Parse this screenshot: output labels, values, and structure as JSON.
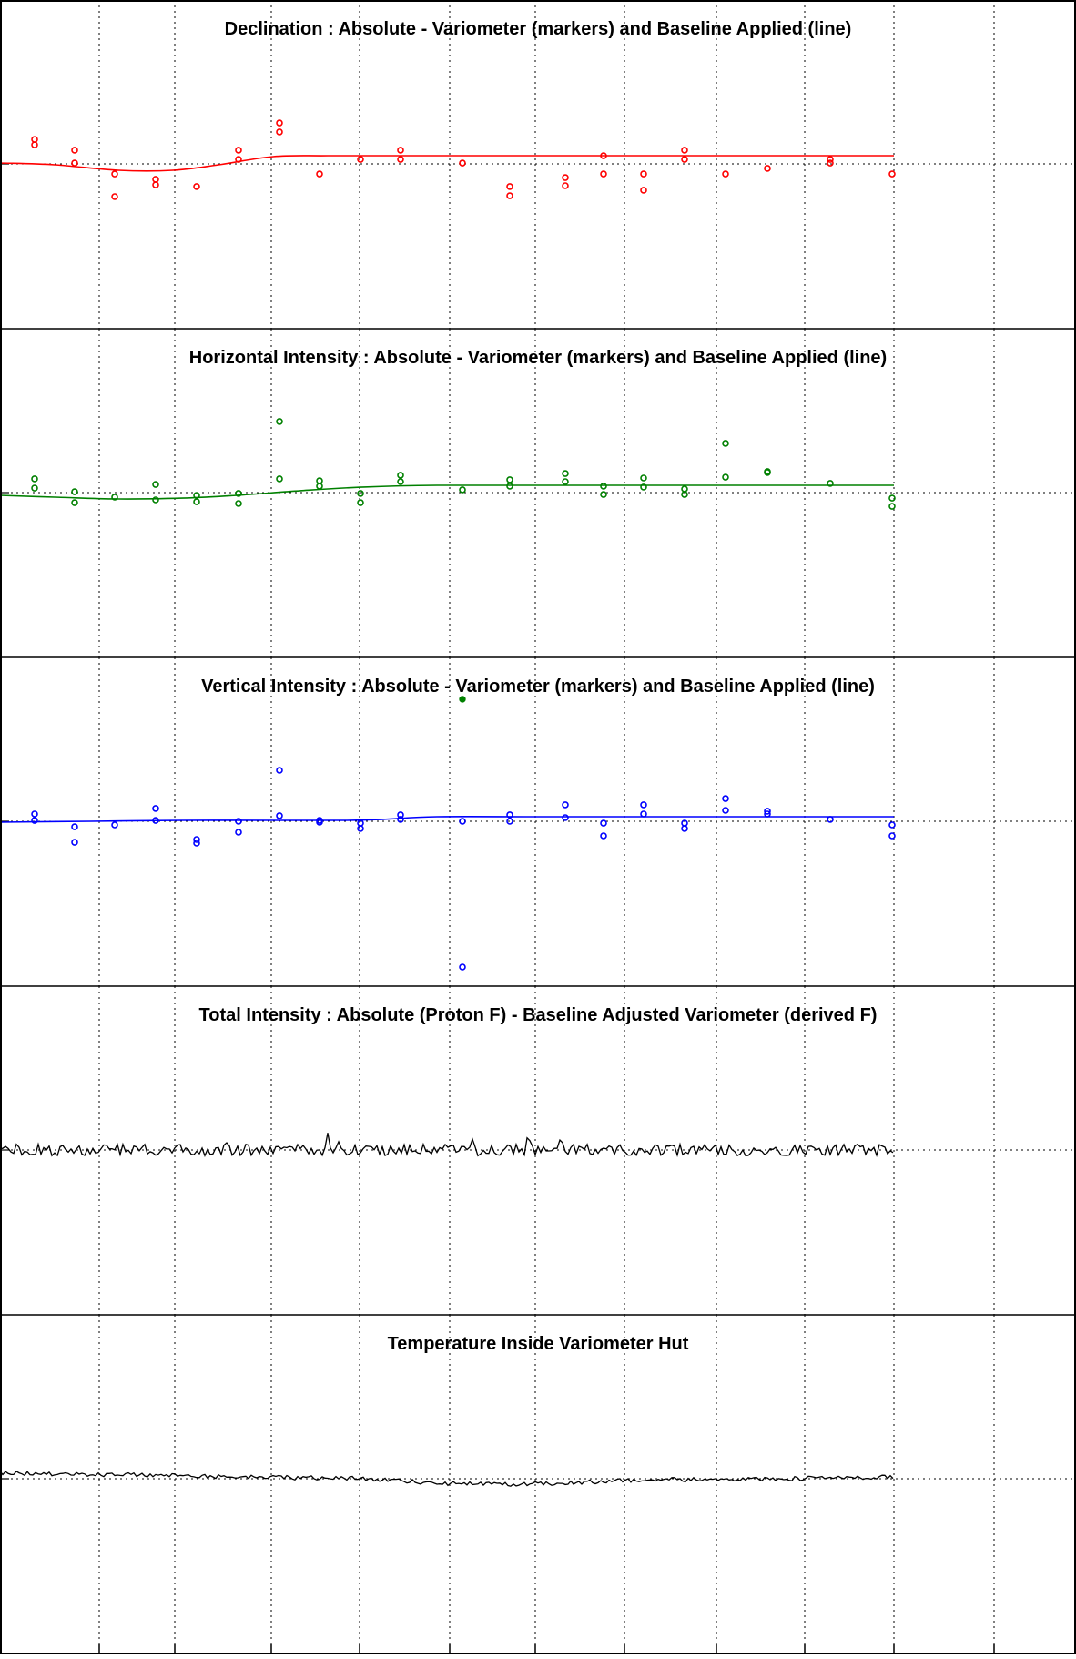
{
  "chart_data": [
    {
      "type": "scatter",
      "title": "Declination : Absolute - Variometer (markers) and Baseline Applied (line)",
      "color": "#ff0000",
      "marker": "open-circle",
      "x_range": [
        0,
        1182
      ],
      "ylim": [
        -1,
        1
      ],
      "reference_level": 0,
      "grid": true,
      "markers": [
        [
          38,
          0.168
        ],
        [
          38,
          0.131
        ],
        [
          82,
          0.094
        ],
        [
          82,
          0.006
        ],
        [
          126,
          -0.069
        ],
        [
          126,
          -0.225
        ],
        [
          171,
          -0.106
        ],
        [
          171,
          -0.144
        ],
        [
          216,
          -0.156
        ],
        [
          262,
          0.094
        ],
        [
          262,
          0.031
        ],
        [
          307,
          0.281
        ],
        [
          307,
          0.219
        ],
        [
          351,
          -0.069
        ],
        [
          396,
          0.031
        ],
        [
          440,
          0.094
        ],
        [
          440,
          0.031
        ],
        [
          508,
          0.006
        ],
        [
          560,
          -0.156
        ],
        [
          560,
          -0.219
        ],
        [
          621,
          -0.094
        ],
        [
          621,
          -0.15
        ],
        [
          663,
          0.056
        ],
        [
          663,
          -0.069
        ],
        [
          707,
          -0.069
        ],
        [
          707,
          -0.181
        ],
        [
          752,
          0.094
        ],
        [
          752,
          0.031
        ],
        [
          797,
          -0.069
        ],
        [
          843,
          -0.031
        ],
        [
          912,
          0.031
        ],
        [
          912,
          0.006
        ],
        [
          980,
          -0.069
        ]
      ],
      "baseline": [
        [
          0,
          0.006
        ],
        [
          60,
          -0.006
        ],
        [
          130,
          -0.044
        ],
        [
          190,
          -0.044
        ],
        [
          240,
          -0.006
        ],
        [
          300,
          0.05
        ],
        [
          360,
          0.056
        ],
        [
          450,
          0.056
        ],
        [
          600,
          0.056
        ],
        [
          800,
          0.056
        ],
        [
          982,
          0.056
        ]
      ]
    },
    {
      "type": "scatter",
      "title": "Horizontal Intensity : Absolute - Variometer (markers) and Baseline Applied (line)",
      "color": "#008000",
      "marker": "open-circle",
      "x_range": [
        0,
        1182
      ],
      "ylim": [
        -1,
        1
      ],
      "reference_level": 0,
      "grid": true,
      "markers": [
        [
          38,
          0.094
        ],
        [
          38,
          0.031
        ],
        [
          82,
          0.006
        ],
        [
          82,
          -0.069
        ],
        [
          126,
          -0.031
        ],
        [
          171,
          0.056
        ],
        [
          171,
          -0.05
        ],
        [
          216,
          -0.019
        ],
        [
          216,
          -0.063
        ],
        [
          262,
          -0.006
        ],
        [
          262,
          -0.075
        ],
        [
          307,
          0.488
        ],
        [
          307,
          0.094
        ],
        [
          351,
          0.081
        ],
        [
          351,
          0.044
        ],
        [
          396,
          -0.006
        ],
        [
          396,
          -0.069
        ],
        [
          440,
          0.119
        ],
        [
          440,
          0.075
        ],
        [
          508,
          0.019
        ],
        [
          560,
          0.088
        ],
        [
          560,
          0.044
        ],
        [
          621,
          0.131
        ],
        [
          621,
          0.075
        ],
        [
          663,
          0.044
        ],
        [
          663,
          -0.013
        ],
        [
          707,
          0.1
        ],
        [
          707,
          0.038
        ],
        [
          752,
          0.025
        ],
        [
          752,
          -0.013
        ],
        [
          797,
          0.338
        ],
        [
          797,
          0.106
        ],
        [
          843,
          0.144
        ],
        [
          843,
          0.138
        ],
        [
          912,
          0.063
        ],
        [
          980,
          -0.038
        ],
        [
          980,
          -0.094
        ]
      ],
      "baseline": [
        [
          0,
          -0.019
        ],
        [
          60,
          -0.031
        ],
        [
          130,
          -0.044
        ],
        [
          200,
          -0.038
        ],
        [
          260,
          -0.019
        ],
        [
          330,
          0.013
        ],
        [
          400,
          0.038
        ],
        [
          480,
          0.05
        ],
        [
          600,
          0.05
        ],
        [
          800,
          0.05
        ],
        [
          982,
          0.05
        ]
      ]
    },
    {
      "type": "scatter",
      "title": "Vertical Intensity : Absolute - Variometer (markers) and Baseline Applied (line)",
      "color": "#0000ff",
      "marker": "open-circle",
      "x_range": [
        0,
        1182
      ],
      "ylim": [
        -1,
        1
      ],
      "reference_level": 0,
      "grid": true,
      "markers": [
        [
          38,
          0.05
        ],
        [
          38,
          0.006
        ],
        [
          82,
          -0.038
        ],
        [
          82,
          -0.144
        ],
        [
          126,
          -0.025
        ],
        [
          171,
          0.088
        ],
        [
          171,
          0.006
        ],
        [
          216,
          -0.125
        ],
        [
          216,
          -0.15
        ],
        [
          262,
          0.0
        ],
        [
          262,
          -0.075
        ],
        [
          307,
          0.35
        ],
        [
          307,
          0.038
        ],
        [
          351,
          0.006
        ],
        [
          351,
          -0.006
        ],
        [
          396,
          -0.013
        ],
        [
          396,
          -0.05
        ],
        [
          440,
          0.044
        ],
        [
          440,
          0.013
        ],
        [
          508,
          0.0
        ],
        [
          508,
          -1.0
        ],
        [
          560,
          0.044
        ],
        [
          560,
          0.0
        ],
        [
          621,
          0.113
        ],
        [
          621,
          0.025
        ],
        [
          663,
          -0.013
        ],
        [
          663,
          -0.1
        ],
        [
          707,
          0.113
        ],
        [
          707,
          0.05
        ],
        [
          752,
          -0.013
        ],
        [
          752,
          -0.05
        ],
        [
          797,
          0.156
        ],
        [
          797,
          0.075
        ],
        [
          843,
          0.069
        ],
        [
          843,
          0.05
        ],
        [
          912,
          0.013
        ],
        [
          980,
          -0.025
        ],
        [
          980,
          -0.1
        ]
      ],
      "filled_markers": [
        [
          508,
          0.838,
          "#008000"
        ]
      ],
      "baseline": [
        [
          0,
          -0.006
        ],
        [
          100,
          0.0
        ],
        [
          200,
          0.006
        ],
        [
          300,
          0.006
        ],
        [
          380,
          0.006
        ],
        [
          420,
          0.013
        ],
        [
          480,
          0.031
        ],
        [
          600,
          0.031
        ],
        [
          800,
          0.031
        ],
        [
          982,
          0.031
        ]
      ]
    },
    {
      "type": "line",
      "title": "Total Intensity : Absolute (Proton F) - Baseline Adjusted Variometer (derived F)",
      "color": "#000000",
      "x_range": [
        0,
        1182
      ],
      "ylim": [
        -1,
        1
      ],
      "reference_level": 0,
      "grid": true,
      "x_extent": [
        0,
        982
      ],
      "noise_amplitude": 0.04,
      "spikes": [
        [
          250,
          0.05
        ],
        [
          360,
          0.09
        ],
        [
          370,
          0.06
        ],
        [
          520,
          0.07
        ],
        [
          580,
          0.08
        ],
        [
          615,
          0.05
        ]
      ]
    },
    {
      "type": "line",
      "title": "Temperature Inside Variometer Hut",
      "color": "#000000",
      "x_range": [
        0,
        1182
      ],
      "ylim": [
        -1,
        1
      ],
      "reference_level": 0,
      "grid": true,
      "x_extent": [
        0,
        982
      ],
      "noise_amplitude": 0.015,
      "trend": [
        [
          0,
          0.04
        ],
        [
          200,
          0.02
        ],
        [
          400,
          0.0
        ],
        [
          480,
          -0.03
        ],
        [
          560,
          -0.04
        ],
        [
          700,
          -0.01
        ],
        [
          850,
          0.0
        ],
        [
          982,
          0.01
        ]
      ]
    }
  ]
}
